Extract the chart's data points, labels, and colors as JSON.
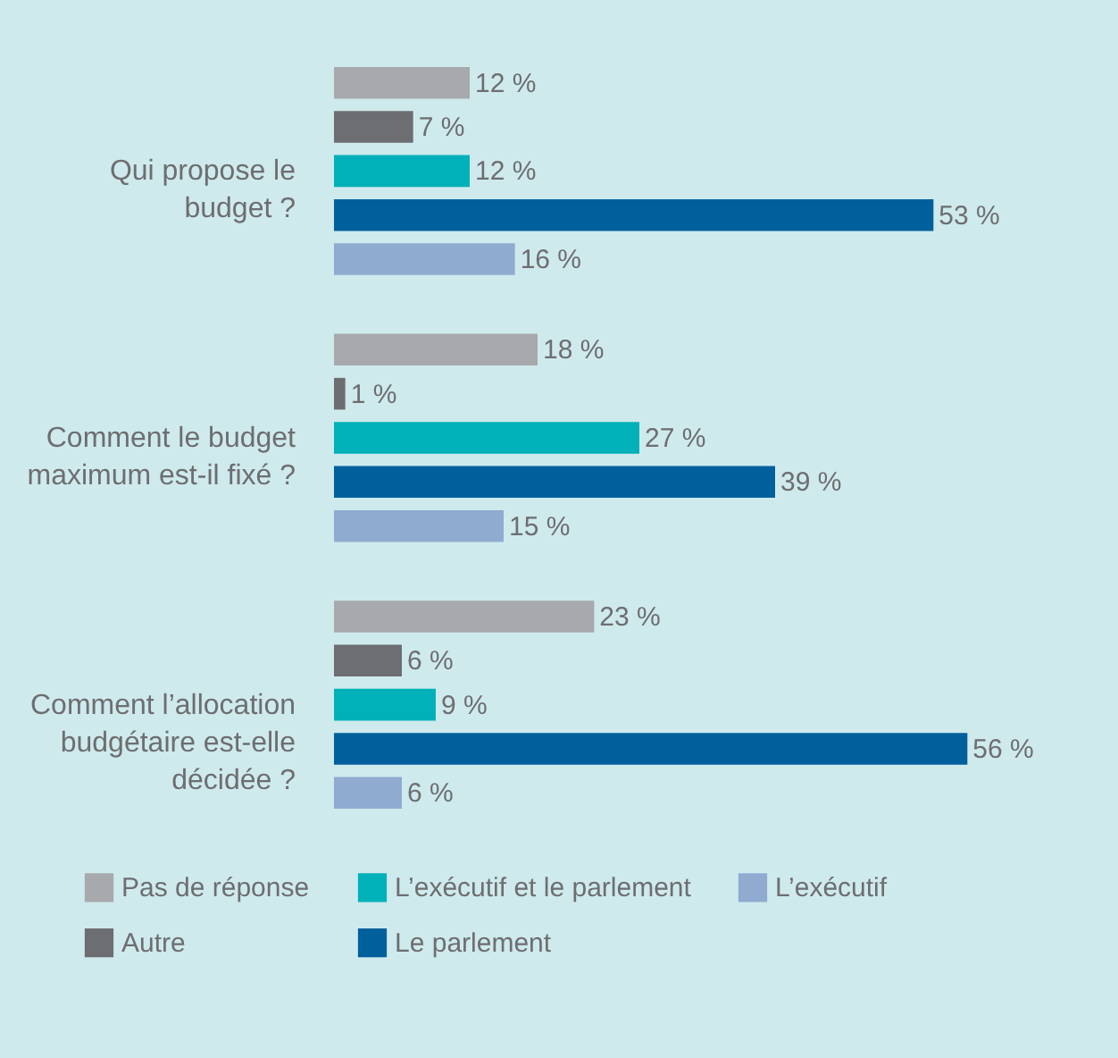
{
  "chart_data": {
    "type": "bar",
    "orientation": "horizontal",
    "categories": [
      "Qui propose le budget ?",
      "Comment le budget maximum est-il fixé ?",
      "Comment l’allocation budgétaire est-elle décidée ?"
    ],
    "series": [
      {
        "name": "Pas de réponse",
        "color": "#a7a9ac",
        "values": [
          12,
          18,
          23
        ],
        "value_labels": [
          "12 %",
          "18 %",
          "23 %"
        ]
      },
      {
        "name": "Autre",
        "color": "#6d6e71",
        "values": [
          7,
          1,
          6
        ],
        "value_labels": [
          "7 %",
          "1 %",
          "6 %"
        ]
      },
      {
        "name": "L’exécutif et le parlement",
        "color": "#00b1b9",
        "values": [
          12,
          27,
          9
        ],
        "value_labels": [
          "12 %",
          "27 %",
          "9 %"
        ]
      },
      {
        "name": "Le parlement",
        "color": "#00609c",
        "values": [
          53,
          39,
          56
        ],
        "value_labels": [
          "53 %",
          "39 %",
          "56 %"
        ]
      },
      {
        "name": "L’exécutif",
        "color": "#8fabd0",
        "values": [
          16,
          15,
          6
        ],
        "value_labels": [
          "16 %",
          "15 %",
          "6 %"
        ]
      }
    ],
    "legend": "bottom"
  }
}
